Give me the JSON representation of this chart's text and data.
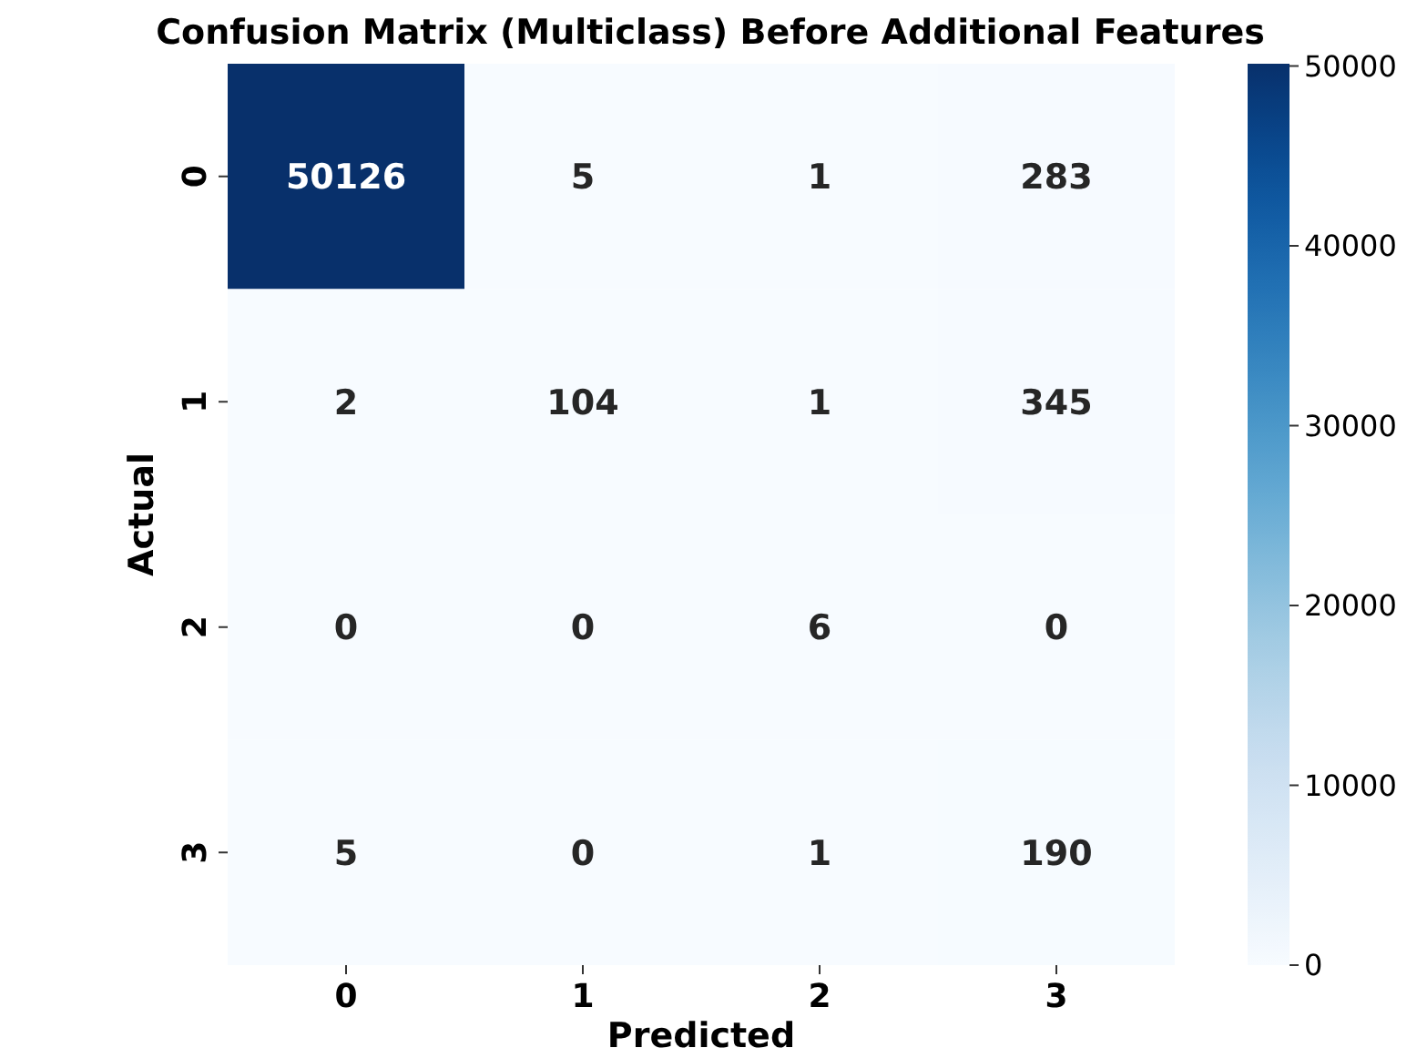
{
  "chart_data": {
    "type": "heatmap",
    "title": "Confusion Matrix (Multiclass) Before Additional Features",
    "xlabel": "Predicted",
    "ylabel": "Actual",
    "categories": [
      "0",
      "1",
      "2",
      "3"
    ],
    "y_categories": [
      "0",
      "1",
      "2",
      "3"
    ],
    "cells": [
      [
        50126,
        5,
        1,
        283
      ],
      [
        2,
        104,
        1,
        345
      ],
      [
        0,
        0,
        6,
        0
      ],
      [
        5,
        0,
        1,
        190
      ]
    ],
    "data_labels": true,
    "clim": [
      0,
      50126
    ],
    "cticks": [
      0,
      10000,
      20000,
      30000,
      40000,
      50000
    ]
  }
}
